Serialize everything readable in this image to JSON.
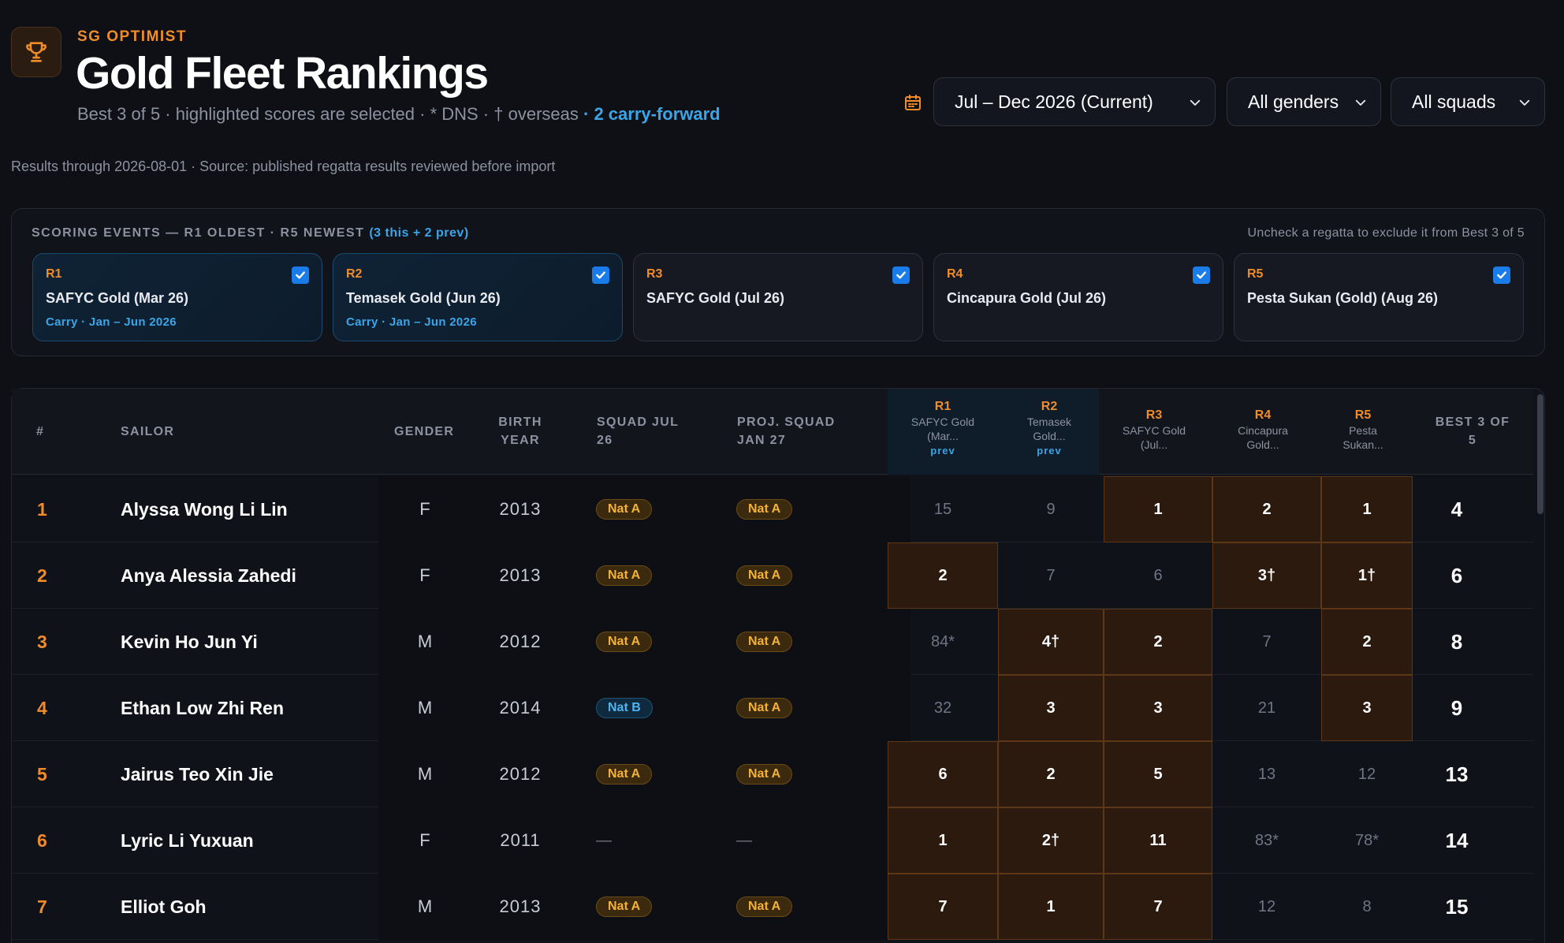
{
  "header": {
    "brand": "SG OPTIMIST",
    "title": "Gold Fleet Rankings",
    "subtitle": "Best 3 of 5 · highlighted scores are selected · * DNS · † overseas",
    "carry_note": "· 2 carry-forward",
    "results_note": "Results through 2026-08-01 · Source: published regatta results reviewed before import"
  },
  "filters": {
    "period": "Jul – Dec 2026 (Current)",
    "gender": "All genders",
    "squad": "All squads"
  },
  "events": {
    "heading": "SCORING EVENTS — R1 OLDEST · R5 NEWEST",
    "count": "(3 this + 2 prev)",
    "hint": "Uncheck a regatta to exclude it from Best 3 of 5",
    "cards": [
      {
        "no": "R1",
        "name": "SAFYC Gold (Mar 26)",
        "carry": "Carry · Jan – Jun 2026"
      },
      {
        "no": "R2",
        "name": "Temasek Gold (Jun 26)",
        "carry": "Carry · Jan – Jun 2026"
      },
      {
        "no": "R3",
        "name": "SAFYC Gold (Jul 26)",
        "carry": ""
      },
      {
        "no": "R4",
        "name": "Cincapura Gold (Jul 26)",
        "carry": ""
      },
      {
        "no": "R5",
        "name": "Pesta Sukan (Gold) (Aug 26)",
        "carry": ""
      }
    ]
  },
  "table": {
    "headers": {
      "rank": "#",
      "sailor": "SAILOR",
      "gender": "GENDER",
      "birth1": "BIRTH",
      "birth2": "YEAR",
      "squad1": "SQUAD JUL",
      "squad2": "26",
      "psquad1": "PROJ. SQUAD",
      "psquad2": "JAN 27",
      "best1": "BEST 3 OF",
      "best2": "5"
    },
    "races": [
      {
        "no": "R1",
        "l1": "SAFYC Gold",
        "l2": "(Mar...",
        "prev": "prev"
      },
      {
        "no": "R2",
        "l1": "Temasek",
        "l2": "Gold...",
        "prev": "prev"
      },
      {
        "no": "R3",
        "l1": "SAFYC Gold",
        "l2": "(Jul...",
        "prev": ""
      },
      {
        "no": "R4",
        "l1": "Cincapura",
        "l2": "Gold...",
        "prev": ""
      },
      {
        "no": "R5",
        "l1": "Pesta",
        "l2": "Sukan...",
        "prev": ""
      }
    ],
    "rows": [
      {
        "rank": "1",
        "name": "Alyssa Wong Li Lin",
        "gender": "F",
        "year": "2013",
        "squad": "Nat A",
        "psquad": "Nat A",
        "scores": [
          "15",
          "9",
          "1",
          "2",
          "1"
        ],
        "sel": [
          false,
          false,
          true,
          true,
          true
        ],
        "best": "4"
      },
      {
        "rank": "2",
        "name": "Anya Alessia Zahedi",
        "gender": "F",
        "year": "2013",
        "squad": "Nat A",
        "psquad": "Nat A",
        "scores": [
          "2",
          "7",
          "6",
          "3†",
          "1†"
        ],
        "sel": [
          true,
          false,
          false,
          true,
          true
        ],
        "best": "6"
      },
      {
        "rank": "3",
        "name": "Kevin Ho Jun Yi",
        "gender": "M",
        "year": "2012",
        "squad": "Nat A",
        "psquad": "Nat A",
        "scores": [
          "84*",
          "4†",
          "2",
          "7",
          "2"
        ],
        "sel": [
          false,
          true,
          true,
          false,
          true
        ],
        "best": "8"
      },
      {
        "rank": "4",
        "name": "Ethan Low Zhi Ren",
        "gender": "M",
        "year": "2014",
        "squad": "Nat B",
        "psquad": "Nat A",
        "scores": [
          "32",
          "3",
          "3",
          "21",
          "3"
        ],
        "sel": [
          false,
          true,
          true,
          false,
          true
        ],
        "best": "9"
      },
      {
        "rank": "5",
        "name": "Jairus Teo Xin Jie",
        "gender": "M",
        "year": "2012",
        "squad": "Nat A",
        "psquad": "Nat A",
        "scores": [
          "6",
          "2",
          "5",
          "13",
          "12"
        ],
        "sel": [
          true,
          true,
          true,
          false,
          false
        ],
        "best": "13"
      },
      {
        "rank": "6",
        "name": "Lyric Li Yuxuan",
        "gender": "F",
        "year": "2011",
        "squad": "—",
        "psquad": "—",
        "scores": [
          "1",
          "2†",
          "11",
          "83*",
          "78*"
        ],
        "sel": [
          true,
          true,
          true,
          false,
          false
        ],
        "best": "14"
      },
      {
        "rank": "7",
        "name": "Elliot Goh",
        "gender": "M",
        "year": "2013",
        "squad": "Nat A",
        "psquad": "Nat A",
        "scores": [
          "7",
          "1",
          "7",
          "12",
          "8"
        ],
        "sel": [
          true,
          true,
          true,
          false,
          false
        ],
        "best": "15"
      }
    ]
  },
  "colors": {
    "accent": "#f08c2a",
    "carry": "#3aa6e8",
    "selected_bg": "#2b1a0d",
    "checkbox": "#1a7ce8"
  },
  "icons": {
    "logo": "trophy-icon",
    "calendar": "calendar-icon",
    "dropdown": "chevron-down-icon",
    "checkbox": "checkmark-icon"
  }
}
